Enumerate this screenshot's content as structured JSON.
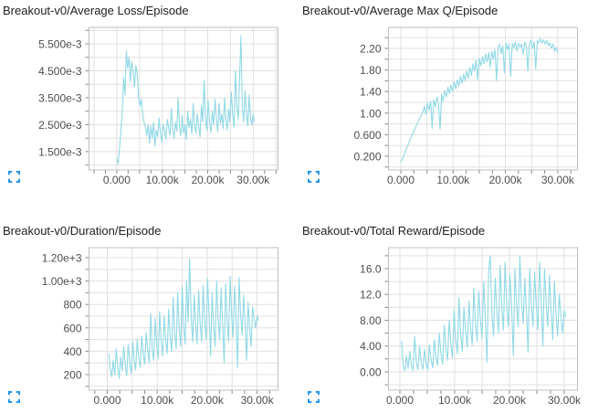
{
  "colors": {
    "line": "#90d9e6",
    "grid": "#e0e0e0",
    "plot_border": "#bfbfbf",
    "tick_mark": "#888888",
    "tick_text": "#4d4d4d",
    "title_text": "#212121",
    "icon_accent": "#2196f3",
    "background": "#ffffff"
  },
  "icons": [
    {
      "name": "fullscreen-icon",
      "meaning": "expand chart"
    }
  ],
  "chart_data": [
    {
      "type": "line",
      "title": "Breakout-v0/Average Loss/Episode",
      "y_unit": "1e-3",
      "xlim": [
        -6100,
        35450
      ],
      "ylim": [
        0.82,
        6.11
      ],
      "x_grid_step": 5000,
      "x_minor_tick_step": 2500,
      "y_grid_step": 0.5,
      "x_ticks": [
        {
          "value": 0,
          "label": "0.000"
        },
        {
          "value": 10000,
          "label": "10.00k"
        },
        {
          "value": 20000,
          "label": "20.00k"
        },
        {
          "value": 30000,
          "label": "30.00k"
        }
      ],
      "y_ticks": [
        {
          "value": 1.5,
          "label": "1.500e-3"
        },
        {
          "value": 2.5,
          "label": "2.500e-3"
        },
        {
          "value": 3.5,
          "label": "3.500e-3"
        },
        {
          "value": 4.5,
          "label": "4.500e-3"
        },
        {
          "value": 5.5,
          "label": "5.500e-3"
        }
      ],
      "series": {
        "x_start": 0,
        "x_step": 300,
        "y": [
          1.25,
          1.05,
          1.6,
          2.2,
          3.0,
          4.25,
          3.6,
          5.25,
          4.6,
          5.0,
          4.1,
          4.85,
          4.5,
          3.9,
          4.7,
          4.4,
          3.5,
          3.2,
          3.45,
          2.9,
          2.6,
          2.4,
          2.1,
          2.5,
          1.8,
          2.45,
          2.0,
          2.6,
          1.7,
          2.3,
          2.05,
          2.75,
          2.2,
          1.85,
          2.5,
          2.3,
          1.95,
          2.7,
          2.4,
          2.1,
          3.1,
          2.35,
          2.0,
          2.6,
          2.25,
          3.5,
          2.4,
          2.1,
          2.85,
          2.2,
          2.5,
          1.95,
          3.0,
          2.4,
          2.7,
          2.15,
          3.3,
          2.5,
          2.2,
          2.9,
          2.45,
          2.05,
          3.2,
          2.6,
          4.15,
          2.8,
          2.3,
          3.4,
          2.6,
          2.2,
          3.0,
          2.5,
          3.45,
          2.7,
          2.25,
          3.3,
          2.55,
          2.9,
          2.35,
          3.5,
          2.7,
          2.3,
          3.1,
          2.6,
          3.7,
          2.85,
          2.4,
          4.5,
          3.2,
          2.7,
          4.2,
          5.8,
          3.1,
          2.6,
          3.75,
          2.9,
          2.45,
          3.6,
          2.75,
          2.5,
          2.9,
          2.6
        ]
      }
    },
    {
      "type": "line",
      "title": "Breakout-v0/Average Max Q/Episode",
      "y_unit": "1",
      "xlim": [
        -2360,
        33770
      ],
      "ylim": [
        -0.054,
        2.59
      ],
      "x_grid_step": 5000,
      "x_minor_tick_step": 2500,
      "y_grid_step": 0.2,
      "x_ticks": [
        {
          "value": 0,
          "label": "0.000"
        },
        {
          "value": 10000,
          "label": "10.00k"
        },
        {
          "value": 20000,
          "label": "20.00k"
        },
        {
          "value": 30000,
          "label": "30.00k"
        }
      ],
      "y_ticks": [
        {
          "value": 0.2,
          "label": "0.200"
        },
        {
          "value": 0.6,
          "label": "0.600"
        },
        {
          "value": 1.0,
          "label": "1.00"
        },
        {
          "value": 1.4,
          "label": "1.40"
        },
        {
          "value": 1.8,
          "label": "1.80"
        },
        {
          "value": 2.2,
          "label": "2.20"
        }
      ],
      "series": {
        "x_start": 0,
        "x_step": 300,
        "y": [
          0.09,
          0.15,
          0.22,
          0.3,
          0.37,
          0.44,
          0.52,
          0.58,
          0.65,
          0.71,
          0.77,
          0.84,
          0.9,
          0.97,
          1.02,
          1.12,
          0.98,
          1.18,
          1.05,
          1.22,
          0.72,
          1.25,
          1.12,
          1.3,
          1.18,
          0.7,
          1.35,
          1.22,
          1.42,
          1.3,
          1.48,
          1.36,
          1.52,
          1.4,
          1.58,
          1.45,
          1.62,
          1.5,
          1.68,
          1.55,
          1.72,
          1.6,
          1.78,
          1.65,
          1.85,
          1.7,
          1.92,
          1.78,
          1.98,
          1.62,
          2.02,
          1.88,
          2.05,
          1.92,
          2.1,
          1.95,
          2.12,
          1.85,
          2.15,
          2.0,
          2.18,
          1.6,
          2.22,
          2.28,
          2.1,
          2.25,
          1.75,
          2.3,
          2.18,
          2.28,
          1.68,
          2.3,
          2.2,
          2.32,
          2.15,
          2.3,
          2.22,
          2.28,
          2.1,
          2.32,
          2.25,
          1.78,
          2.3,
          2.35,
          2.2,
          2.32,
          1.82,
          2.35,
          2.3,
          2.38,
          2.3,
          2.36,
          2.28,
          2.35,
          2.25,
          2.3,
          2.2,
          2.28,
          2.15,
          2.22,
          2.12
        ]
      }
    },
    {
      "type": "line",
      "title": "Breakout-v0/Duration/Episode",
      "y_unit": "1",
      "xlim": [
        -3650,
        34190
      ],
      "ylim": [
        67,
        1286
      ],
      "x_grid_step": 5000,
      "x_minor_tick_step": 2500,
      "y_grid_step": 100,
      "x_ticks": [
        {
          "value": 0,
          "label": "0.000"
        },
        {
          "value": 10000,
          "label": "10.00k"
        },
        {
          "value": 20000,
          "label": "20.00k"
        },
        {
          "value": 30000,
          "label": "30.00k"
        }
      ],
      "y_ticks": [
        {
          "value": 200,
          "label": "200"
        },
        {
          "value": 400,
          "label": "400"
        },
        {
          "value": 600,
          "label": "600"
        },
        {
          "value": 800,
          "label": "800"
        },
        {
          "value": 1000,
          "label": "1.00e+3"
        },
        {
          "value": 1200,
          "label": "1.20e+3"
        }
      ],
      "series": {
        "x_start": 300,
        "x_step": 300,
        "y": [
          380,
          250,
          180,
          320,
          200,
          420,
          260,
          170,
          350,
          230,
          440,
          280,
          190,
          460,
          300,
          210,
          480,
          320,
          240,
          500,
          350,
          260,
          530,
          380,
          290,
          560,
          400,
          300,
          720,
          420,
          320,
          680,
          450,
          340,
          740,
          480,
          360,
          700,
          500,
          380,
          760,
          520,
          400,
          860,
          560,
          420,
          900,
          600,
          440,
          950,
          620,
          460,
          1000,
          650,
          1190,
          700,
          480,
          880,
          620,
          460,
          920,
          640,
          480,
          960,
          660,
          500,
          1020,
          680,
          360,
          900,
          620,
          440,
          1000,
          680,
          500,
          940,
          640,
          300,
          980,
          660,
          480,
          1040,
          700,
          520,
          960,
          680,
          260,
          1030,
          720,
          540,
          880,
          640,
          320,
          820,
          600,
          440,
          780,
          680,
          600,
          700,
          660
        ]
      }
    },
    {
      "type": "line",
      "title": "Breakout-v0/Total Reward/Episode",
      "y_unit": "1",
      "xlim": [
        -2080,
        32420
      ],
      "ylim": [
        -2.84,
        19.26
      ],
      "x_grid_step": 5000,
      "x_minor_tick_step": 2500,
      "y_grid_step": 2,
      "x_ticks": [
        {
          "value": 0,
          "label": "0.000"
        },
        {
          "value": 10000,
          "label": "10.00k"
        },
        {
          "value": 20000,
          "label": "20.00k"
        },
        {
          "value": 30000,
          "label": "30.00k"
        }
      ],
      "y_ticks": [
        {
          "value": 0,
          "label": "0.00"
        },
        {
          "value": 4,
          "label": "4.00"
        },
        {
          "value": 8,
          "label": "8.00"
        },
        {
          "value": 12,
          "label": "12.0"
        },
        {
          "value": 16,
          "label": "16.0"
        }
      ],
      "series": {
        "x_start": 300,
        "x_step": 300,
        "y": [
          4.8,
          1.0,
          0.2,
          2.5,
          0.5,
          3.2,
          1.0,
          0.2,
          5.5,
          1.5,
          0.3,
          4.0,
          1.2,
          0.4,
          3.5,
          1.0,
          0.3,
          4.2,
          1.8,
          0.6,
          5.0,
          2.2,
          1.0,
          6.0,
          2.8,
          1.2,
          7.2,
          3.5,
          1.8,
          8.0,
          4.2,
          2.2,
          9.5,
          5.0,
          2.8,
          11.5,
          5.8,
          3.2,
          10.0,
          6.2,
          3.8,
          11.0,
          6.8,
          4.2,
          13.0,
          7.5,
          4.8,
          12.5,
          8.0,
          5.2,
          14.0,
          8.5,
          1.5,
          15.5,
          18.0,
          9.0,
          5.5,
          14.5,
          9.5,
          6.0,
          16.5,
          10.0,
          6.5,
          17.0,
          10.5,
          7.0,
          15.0,
          10.0,
          2.5,
          16.0,
          10.5,
          7.0,
          18.0,
          11.0,
          7.5,
          14.5,
          9.5,
          3.0,
          16.0,
          10.5,
          7.0,
          15.5,
          10.0,
          6.5,
          17.0,
          11.0,
          4.0,
          16.0,
          10.5,
          7.0,
          15.0,
          9.5,
          5.0,
          14.0,
          9.0,
          5.5,
          12.0,
          8.5,
          6.0,
          9.5,
          8.5
        ]
      }
    }
  ]
}
